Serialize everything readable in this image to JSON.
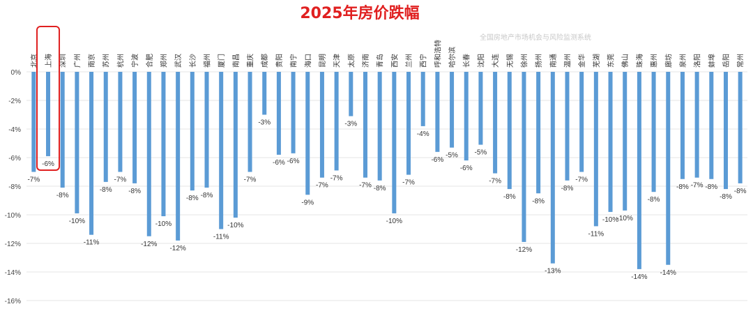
{
  "chart_data": {
    "type": "bar",
    "title": "2025年房价跌幅",
    "watermark": "全国房地产市场机会与风险监测系统",
    "xlabel": "",
    "ylabel": "",
    "ylim": [
      -16,
      0
    ],
    "yticks": [
      0,
      -2,
      -4,
      -6,
      -8,
      -10,
      -12,
      -14,
      -16
    ],
    "ytick_labels": [
      "0%",
      "-2%",
      "-4%",
      "-6%",
      "-8%",
      "-10%",
      "-12%",
      "-14%",
      "-16%"
    ],
    "grid": true,
    "bar_color": "#5b9bd5",
    "highlight_color": "#e02020",
    "highlight_category": "上海",
    "categories": [
      "北京",
      "上海",
      "深圳",
      "广州",
      "南京",
      "苏州",
      "杭州",
      "宁波",
      "合肥",
      "郑州",
      "武汉",
      "长沙",
      "福州",
      "厦门",
      "南昌",
      "重庆",
      "成都",
      "贵阳",
      "南宁",
      "海口",
      "昆明",
      "天津",
      "太原",
      "济南",
      "青岛",
      "西安",
      "兰州",
      "西宁",
      "呼和浩特",
      "哈尔滨",
      "长春",
      "沈阳",
      "大连",
      "无锡",
      "徐州",
      "扬州",
      "南通",
      "温州",
      "金华",
      "芜湖",
      "东莞",
      "佛山",
      "珠海",
      "惠州",
      "廊坊",
      "泉州",
      "洛阳",
      "蚌埠",
      "岳阳",
      "常州"
    ],
    "values": [
      -7.0,
      -5.9,
      -8.1,
      -9.9,
      -11.4,
      -7.7,
      -7.0,
      -7.8,
      -11.5,
      -10.1,
      -11.8,
      -8.3,
      -8.1,
      -11.0,
      -10.2,
      -7.0,
      -3.0,
      -5.8,
      -5.7,
      -8.6,
      -7.4,
      -6.9,
      -3.1,
      -7.4,
      -7.6,
      -9.9,
      -7.2,
      -3.8,
      -5.6,
      -5.3,
      -6.2,
      -5.1,
      -7.1,
      -8.2,
      -11.9,
      -8.5,
      -13.4,
      -7.6,
      -7.0,
      -10.8,
      -9.8,
      -9.7,
      -13.8,
      -8.4,
      -13.5,
      -7.5,
      -7.4,
      -7.5,
      -8.2,
      -7.8
    ],
    "value_labels": [
      "-7%",
      "-6%",
      "-8%",
      "-10%",
      "-11%",
      "-8%",
      "-7%",
      "-8%",
      "-12%",
      "-10%",
      "-12%",
      "-8%",
      "-8%",
      "-11%",
      "-10%",
      "-7%",
      "-3%",
      "-6%",
      "-6%",
      "-9%",
      "-7%",
      "-7%",
      "-3%",
      "-7%",
      "-8%",
      "-10%",
      "-7%",
      "-4%",
      "-6%",
      "-5%",
      "-6%",
      "-5%",
      "-7%",
      "-8%",
      "-12%",
      "-8%",
      "-13%",
      "-8%",
      "-7%",
      "-11%",
      "-10%",
      "-10%",
      "-14%",
      "-8%",
      "-14%",
      "-8%",
      "-7%",
      "-8%",
      "-8%",
      "-8%"
    ]
  }
}
